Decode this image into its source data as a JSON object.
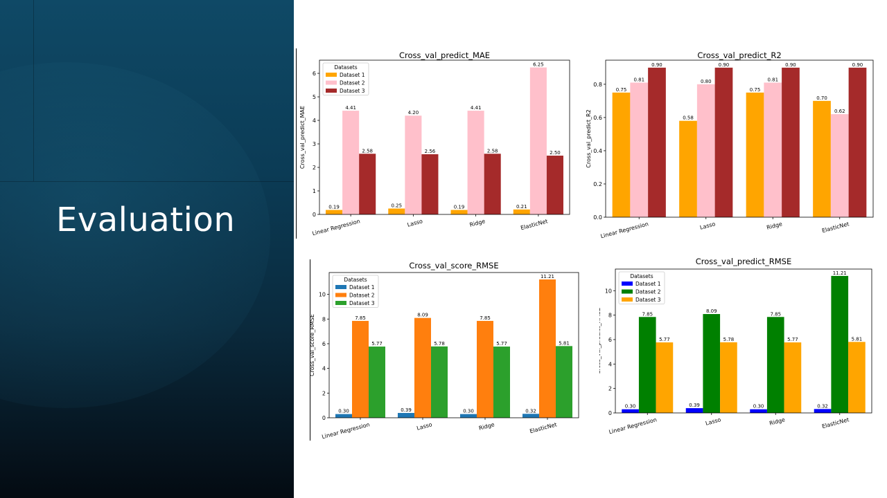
{
  "slide": {
    "title": "Evaluation"
  },
  "colors": {
    "orange": "#ffa500",
    "pink": "#ffc0cb",
    "brown": "#a52a2a",
    "tab_blue": "#1f77b4",
    "tab_orange": "#ff7f0e",
    "tab_green": "#2ca02c",
    "blue": "#0000ff",
    "green": "#008000"
  },
  "chart_data": [
    {
      "type": "bar",
      "title": "Cross_val_predict_MAE",
      "xlabel": "",
      "ylabel": "Cross_val_predict_MAE",
      "categories": [
        "Linear Regression",
        "Lasso",
        "Ridge",
        "ElasticNet"
      ],
      "ylim": [
        0,
        6.56
      ],
      "yticks": [
        0,
        1,
        2,
        3,
        4,
        5,
        6
      ],
      "legend_title": "Datasets",
      "legend_position": "upper-left",
      "series": [
        {
          "name": "Dataset 1",
          "color": "#ffa500",
          "values": [
            0.19,
            0.25,
            0.19,
            0.21
          ],
          "labels": [
            "0.19",
            "0.25",
            "0.19",
            "0.21"
          ]
        },
        {
          "name": "Dataset 2",
          "color": "#ffc0cb",
          "values": [
            4.41,
            4.2,
            4.41,
            6.25
          ],
          "labels": [
            "4.41",
            "4.20",
            "4.41",
            "6.25"
          ]
        },
        {
          "name": "Dataset 3",
          "color": "#a52a2a",
          "values": [
            2.58,
            2.56,
            2.58,
            2.5
          ],
          "labels": [
            "2.58",
            "2.56",
            "2.58",
            "2.50"
          ]
        }
      ]
    },
    {
      "type": "bar",
      "title": "Cross_val_predict_R2",
      "xlabel": "",
      "ylabel": "Cross_val_predict_R2",
      "categories": [
        "Linear Regression",
        "Lasso",
        "Ridge",
        "ElasticNet"
      ],
      "ylim": [
        0,
        0.945
      ],
      "yticks": [
        0.0,
        0.2,
        0.4,
        0.6,
        0.8
      ],
      "legend_title": "",
      "legend_position": "none",
      "series": [
        {
          "name": "",
          "color": "#ffa500",
          "values": [
            0.75,
            0.58,
            0.75,
            0.7
          ],
          "labels": [
            "0.75",
            "0.58",
            "0.75",
            "0.70"
          ]
        },
        {
          "name": "",
          "color": "#ffc0cb",
          "values": [
            0.81,
            0.8,
            0.81,
            0.62
          ],
          "labels": [
            "0.81",
            "0.80",
            "0.81",
            "0.62"
          ]
        },
        {
          "name": "",
          "color": "#a52a2a",
          "values": [
            0.9,
            0.9,
            0.9,
            0.9
          ],
          "labels": [
            "0.90",
            "0.90",
            "0.90",
            "0.90"
          ]
        }
      ]
    },
    {
      "type": "bar",
      "title": "Cross_val_score_RMSE",
      "xlabel": "",
      "ylabel": "Cross_val_score_RMSE",
      "categories": [
        "Linear Regression",
        "Lasso",
        "Ridge",
        "ElasticNet"
      ],
      "ylim": [
        0,
        11.77
      ],
      "yticks": [
        0,
        2,
        4,
        6,
        8,
        10
      ],
      "legend_title": "Datasets",
      "legend_position": "upper-left",
      "series": [
        {
          "name": "Dataset 1",
          "color": "#1f77b4",
          "values": [
            0.3,
            0.39,
            0.3,
            0.32
          ],
          "labels": [
            "0.30",
            "0.39",
            "0.30",
            "0.32"
          ]
        },
        {
          "name": "Dataset 2",
          "color": "#ff7f0e",
          "values": [
            7.85,
            8.09,
            7.85,
            11.21
          ],
          "labels": [
            "7.85",
            "8.09",
            "7.85",
            "11.21"
          ]
        },
        {
          "name": "Dataset 3",
          "color": "#2ca02c",
          "values": [
            5.77,
            5.78,
            5.77,
            5.81
          ],
          "labels": [
            "5.77",
            "5.78",
            "5.77",
            "5.81"
          ]
        }
      ]
    },
    {
      "type": "bar",
      "title": "Cross_val_predict_RMSE",
      "xlabel": "",
      "ylabel": "Cross_val_predict_RMSE",
      "categories": [
        "Linear Regression",
        "Lasso",
        "Ridge",
        "ElasticNet"
      ],
      "ylim": [
        0,
        11.77
      ],
      "yticks": [
        0,
        2,
        4,
        6,
        8,
        10
      ],
      "legend_title": "Datasets",
      "legend_position": "upper-left",
      "series": [
        {
          "name": "Dataset 1",
          "color": "#0000ff",
          "values": [
            0.3,
            0.39,
            0.3,
            0.32
          ],
          "labels": [
            "0.30",
            "0.39",
            "0.30",
            "0.32"
          ]
        },
        {
          "name": "Dataset 2",
          "color": "#008000",
          "values": [
            7.85,
            8.09,
            7.85,
            11.21
          ],
          "labels": [
            "7.85",
            "8.09",
            "7.85",
            "11.21"
          ]
        },
        {
          "name": "Dataset 3",
          "color": "#ffa500",
          "values": [
            5.77,
            5.78,
            5.77,
            5.81
          ],
          "labels": [
            "5.77",
            "5.78",
            "5.77",
            "5.81"
          ]
        }
      ]
    }
  ]
}
